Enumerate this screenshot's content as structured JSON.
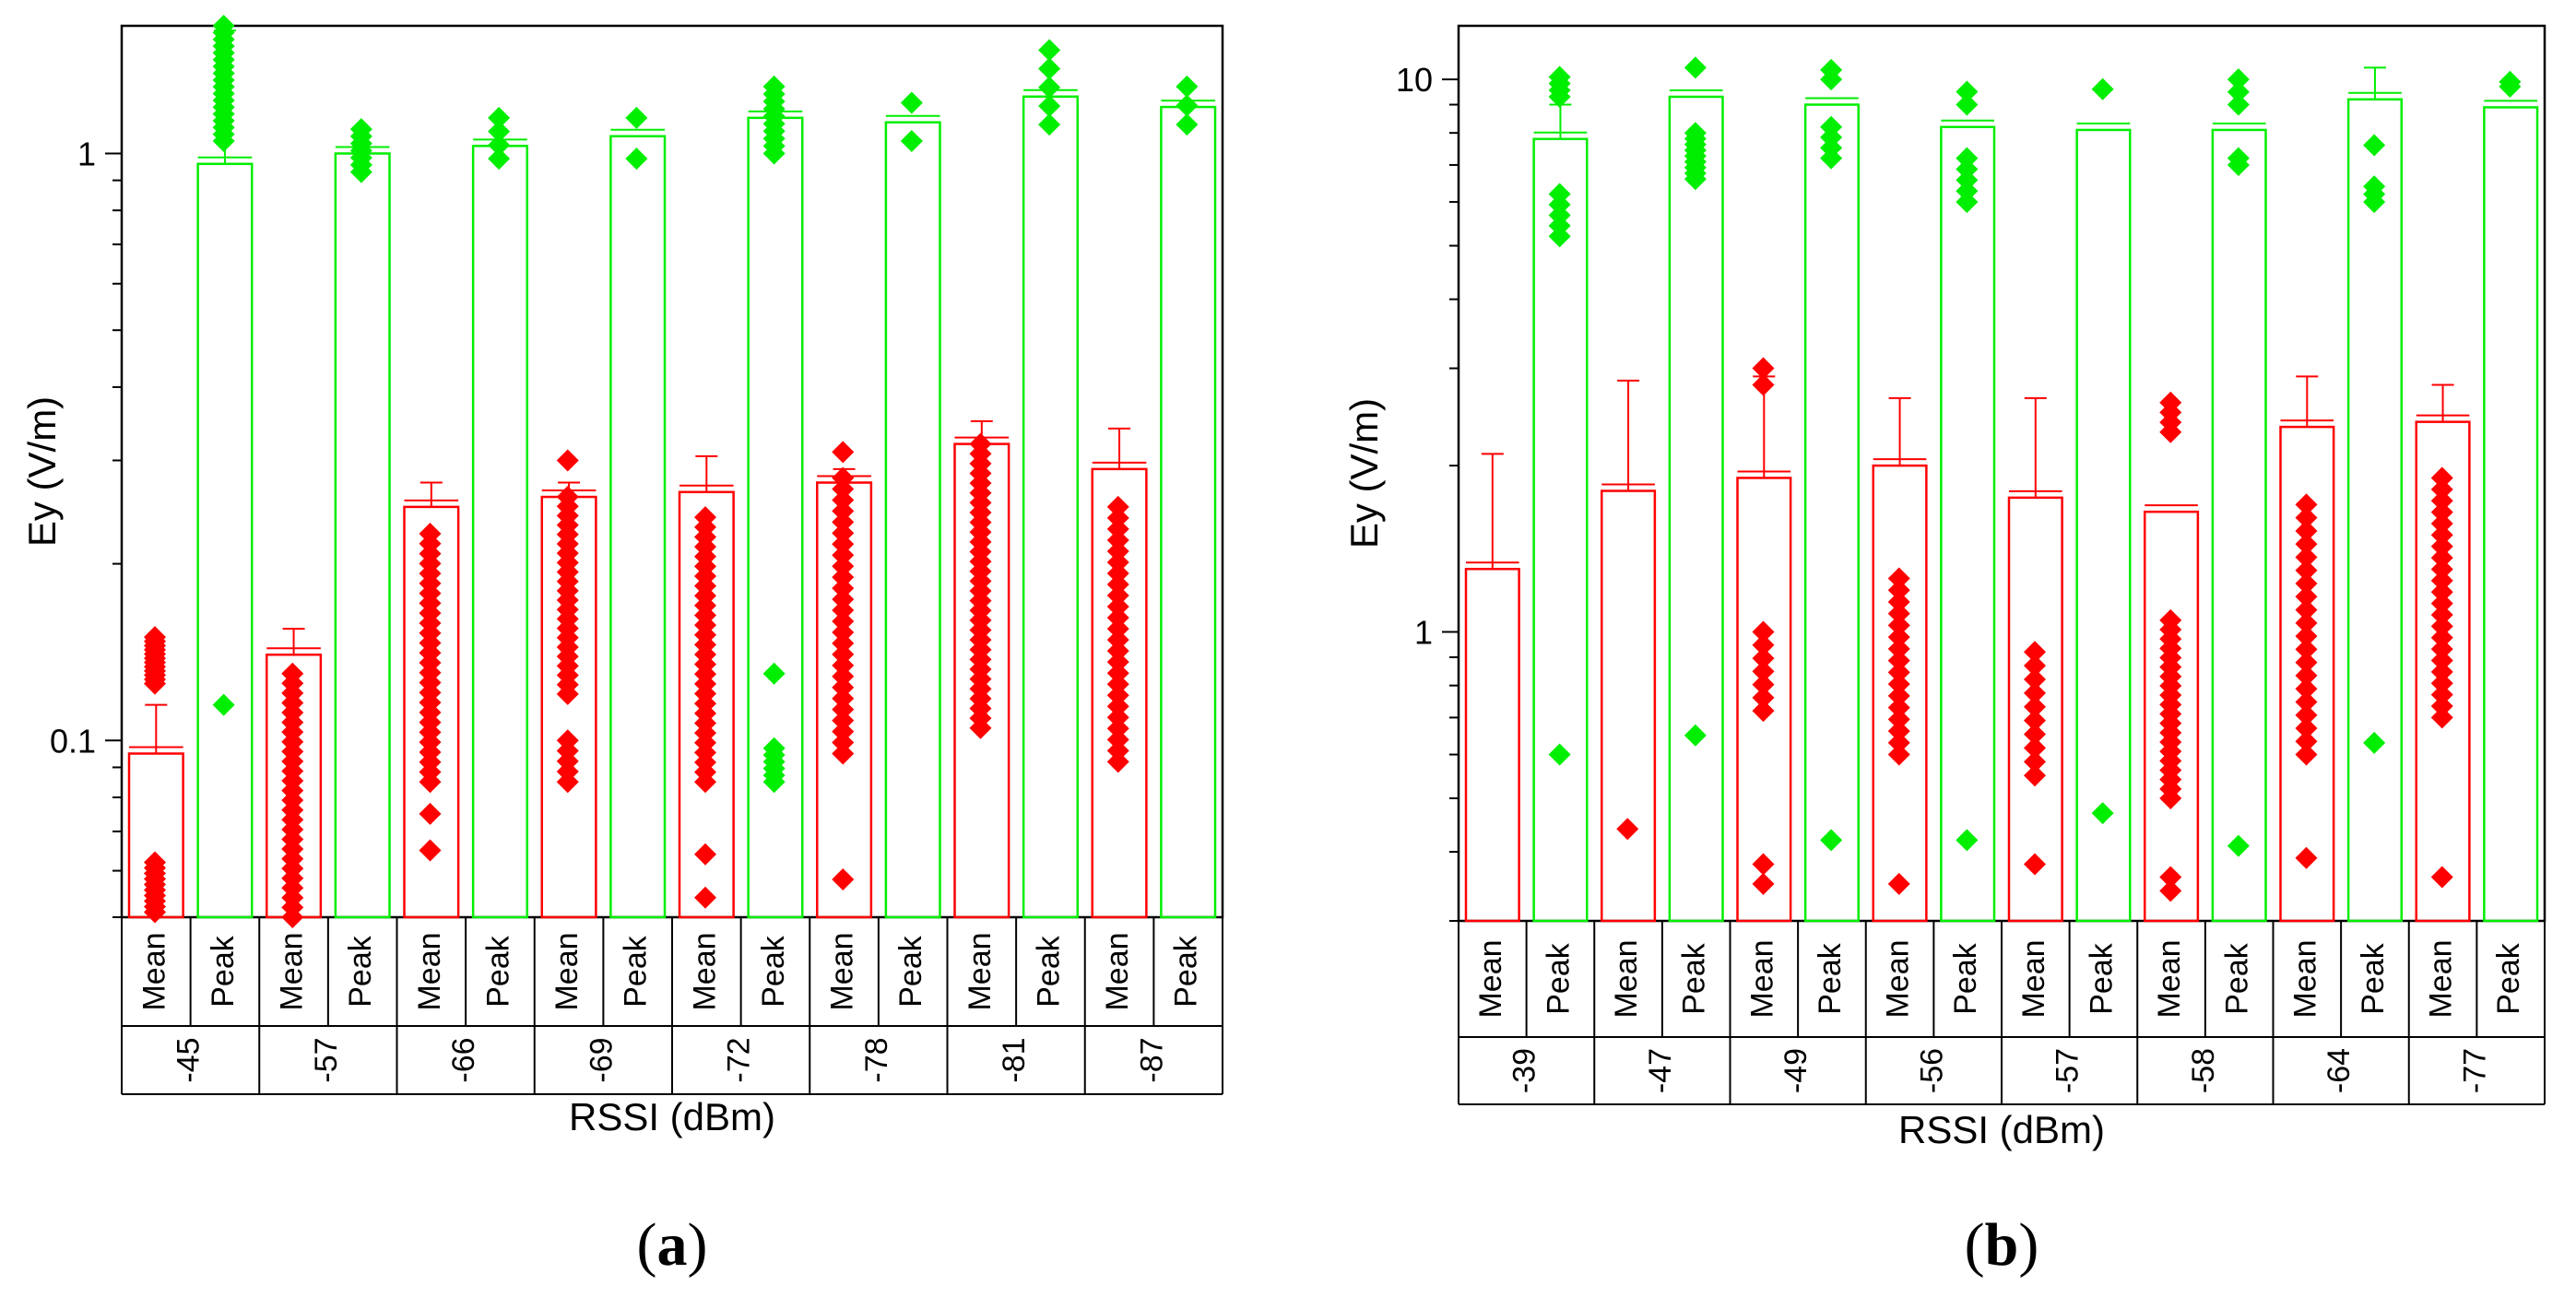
{
  "colors": {
    "mean": "#ff0000",
    "peak": "#00ee00",
    "axis": "#000000"
  },
  "chart_data": [
    {
      "panel_label": "a",
      "type": "bar",
      "title": "",
      "ylabel": "Ey (V/m)",
      "xlabel": "RSSI (dBm)",
      "yscale": "log",
      "ylim": [
        0.05,
        1.65
      ],
      "yticks": [
        {
          "value": 0.1,
          "label": "0.1"
        },
        {
          "value": 1,
          "label": "1"
        }
      ],
      "sub_labels": [
        "Mean",
        "Peak"
      ],
      "groups": [
        {
          "label": "-45",
          "mean": 0.095,
          "mean_err": 0.115,
          "peak": 0.96,
          "peak_err": 1.62,
          "mean_points": [
            [
              0.051,
              0.062,
              10
            ],
            [
              0.125,
              0.15,
              12
            ]
          ],
          "peak_points": [
            [
              0.115,
              0.115,
              1
            ],
            [
              1.05,
              1.65,
              18
            ]
          ]
        },
        {
          "label": "-57",
          "mean": 0.14,
          "mean_err": 0.155,
          "peak": 1.0,
          "peak_err": 1.0,
          "mean_points": [
            [
              0.05,
              0.13,
              26
            ]
          ],
          "peak_points": [
            [
              0.93,
              1.1,
              7
            ]
          ]
        },
        {
          "label": "-66",
          "mean": 0.25,
          "mean_err": 0.275,
          "peak": 1.03,
          "peak_err": 1.03,
          "mean_points": [
            [
              0.065,
              0.065,
              1
            ],
            [
              0.075,
              0.075,
              1
            ],
            [
              0.085,
              0.225,
              26
            ]
          ],
          "peak_points": [
            [
              0.98,
              1.15,
              4
            ]
          ]
        },
        {
          "label": "-69",
          "mean": 0.26,
          "mean_err": 0.275,
          "peak": 1.07,
          "peak_err": 1.07,
          "mean_points": [
            [
              0.085,
              0.1,
              5
            ],
            [
              0.12,
              0.26,
              22
            ],
            [
              0.3,
              0.3,
              1
            ]
          ],
          "peak_points": [
            [
              0.98,
              0.98,
              1
            ],
            [
              1.15,
              1.15,
              1
            ]
          ]
        },
        {
          "label": "-72",
          "mean": 0.265,
          "mean_err": 0.305,
          "peak": 1.15,
          "peak_err": 1.15,
          "mean_points": [
            [
              0.054,
              0.054,
              1
            ],
            [
              0.064,
              0.064,
              1
            ],
            [
              0.085,
              0.24,
              28
            ]
          ],
          "peak_points": [
            [
              0.085,
              0.097,
              6
            ],
            [
              0.13,
              0.13,
              1
            ],
            [
              1.0,
              1.3,
              10
            ]
          ]
        },
        {
          "label": "-78",
          "mean": 0.275,
          "mean_err": 0.29,
          "peak": 1.13,
          "peak_err": 1.13,
          "mean_points": [
            [
              0.058,
              0.058,
              1
            ],
            [
              0.095,
              0.28,
              26
            ],
            [
              0.31,
              0.31,
              1
            ]
          ],
          "peak_points": [
            [
              1.05,
              1.05,
              1
            ],
            [
              1.22,
              1.22,
              1
            ]
          ]
        },
        {
          "label": "-81",
          "mean": 0.32,
          "mean_err": 0.35,
          "peak": 1.25,
          "peak_err": 1.25,
          "mean_points": [
            [
              0.105,
              0.32,
              30
            ]
          ],
          "peak_points": [
            [
              1.12,
              1.5,
              5
            ]
          ]
        },
        {
          "label": "-87",
          "mean": 0.29,
          "mean_err": 0.34,
          "peak": 1.2,
          "peak_err": 1.2,
          "mean_points": [
            [
              0.092,
              0.25,
              24
            ]
          ],
          "peak_points": [
            [
              1.12,
              1.3,
              3
            ]
          ]
        }
      ]
    },
    {
      "panel_label": "b",
      "type": "bar",
      "title": "",
      "ylabel": "Ey (V/m)",
      "xlabel": "RSSI (dBm)",
      "yscale": "log",
      "ylim": [
        0.3,
        12.5
      ],
      "yticks": [
        {
          "value": 1,
          "label": "1"
        },
        {
          "value": 10,
          "label": "10"
        }
      ],
      "sub_labels": [
        "Mean",
        "Peak"
      ],
      "groups": [
        {
          "label": "-39",
          "mean": 1.3,
          "mean_err": 2.1,
          "peak": 7.8,
          "peak_err": 9.0,
          "mean_points": [],
          "peak_points": [
            [
              0.6,
              0.6,
              1
            ],
            [
              5.2,
              6.2,
              5
            ],
            [
              9.3,
              10.1,
              4
            ]
          ]
        },
        {
          "label": "-47",
          "mean": 1.8,
          "mean_err": 2.85,
          "peak": 9.3,
          "peak_err": 9.3,
          "mean_points": [
            [
              0.44,
              0.44,
              1
            ]
          ],
          "peak_points": [
            [
              0.65,
              0.65,
              1
            ],
            [
              6.6,
              8.0,
              9
            ],
            [
              10.5,
              10.5,
              1
            ]
          ]
        },
        {
          "label": "-49",
          "mean": 1.9,
          "mean_err": 2.9,
          "peak": 9.0,
          "peak_err": 9.0,
          "mean_points": [
            [
              0.35,
              0.38,
              2
            ],
            [
              0.72,
              1.0,
              7
            ],
            [
              2.8,
              3.0,
              2
            ]
          ],
          "peak_points": [
            [
              0.42,
              0.42,
              1
            ],
            [
              7.2,
              8.2,
              4
            ],
            [
              10.0,
              10.4,
              2
            ]
          ]
        },
        {
          "label": "-56",
          "mean": 2.0,
          "mean_err": 2.65,
          "peak": 8.2,
          "peak_err": 8.2,
          "mean_points": [
            [
              0.35,
              0.35,
              1
            ],
            [
              0.6,
              1.25,
              16
            ]
          ],
          "peak_points": [
            [
              0.42,
              0.42,
              1
            ],
            [
              6.0,
              7.2,
              5
            ],
            [
              9.0,
              9.5,
              2
            ]
          ]
        },
        {
          "label": "-57",
          "mean": 1.75,
          "mean_err": 2.65,
          "peak": 8.1,
          "peak_err": 8.1,
          "mean_points": [
            [
              0.38,
              0.38,
              1
            ],
            [
              0.55,
              0.92,
              10
            ]
          ],
          "peak_points": [
            [
              0.47,
              0.47,
              1
            ],
            [
              9.6,
              9.6,
              1
            ]
          ]
        },
        {
          "label": "-58",
          "mean": 1.65,
          "mean_err": 1.65,
          "peak": 8.1,
          "peak_err": 8.1,
          "mean_points": [
            [
              0.34,
              0.36,
              2
            ],
            [
              0.5,
              1.05,
              20
            ],
            [
              2.3,
              2.6,
              4
            ]
          ],
          "peak_points": [
            [
              0.41,
              0.41,
              1
            ],
            [
              7.0,
              7.2,
              2
            ],
            [
              9.0,
              10.0,
              3
            ]
          ]
        },
        {
          "label": "-64",
          "mean": 2.35,
          "mean_err": 2.9,
          "peak": 9.2,
          "peak_err": 10.5,
          "mean_points": [
            [
              0.39,
              0.39,
              1
            ],
            [
              0.6,
              1.7,
              20
            ]
          ],
          "peak_points": [
            [
              0.63,
              0.63,
              1
            ],
            [
              6.0,
              6.4,
              3
            ],
            [
              7.6,
              7.6,
              1
            ]
          ]
        },
        {
          "label": "-77",
          "mean": 2.4,
          "mean_err": 2.8,
          "peak": 8.9,
          "peak_err": 8.9,
          "mean_points": [
            [
              0.36,
              0.36,
              1
            ],
            [
              0.7,
              1.9,
              22
            ]
          ],
          "peak_points": [
            [
              9.7,
              9.9,
              2
            ]
          ]
        }
      ]
    }
  ]
}
